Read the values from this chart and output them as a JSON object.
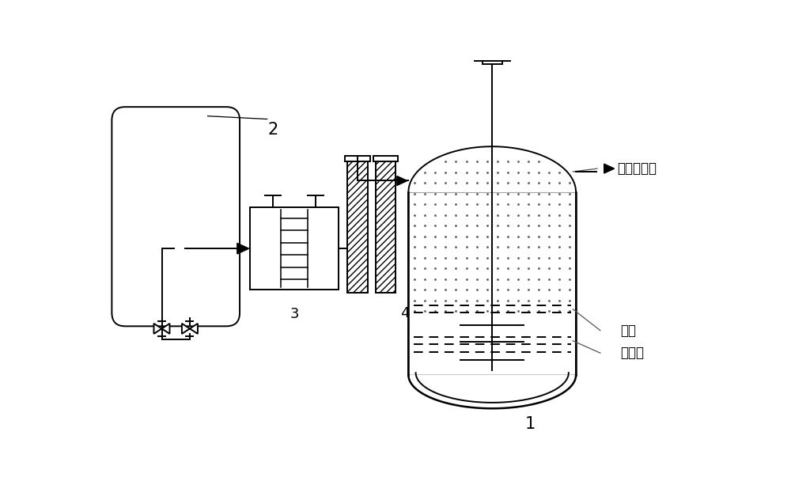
{
  "bg_color": "#ffffff",
  "line_color": "#000000",
  "label_2": "2",
  "label_3": "3",
  "label_4": "4",
  "label_1": "1",
  "text_iso": "异构化产品",
  "text_oil": "油层",
  "text_mix": "混合层"
}
